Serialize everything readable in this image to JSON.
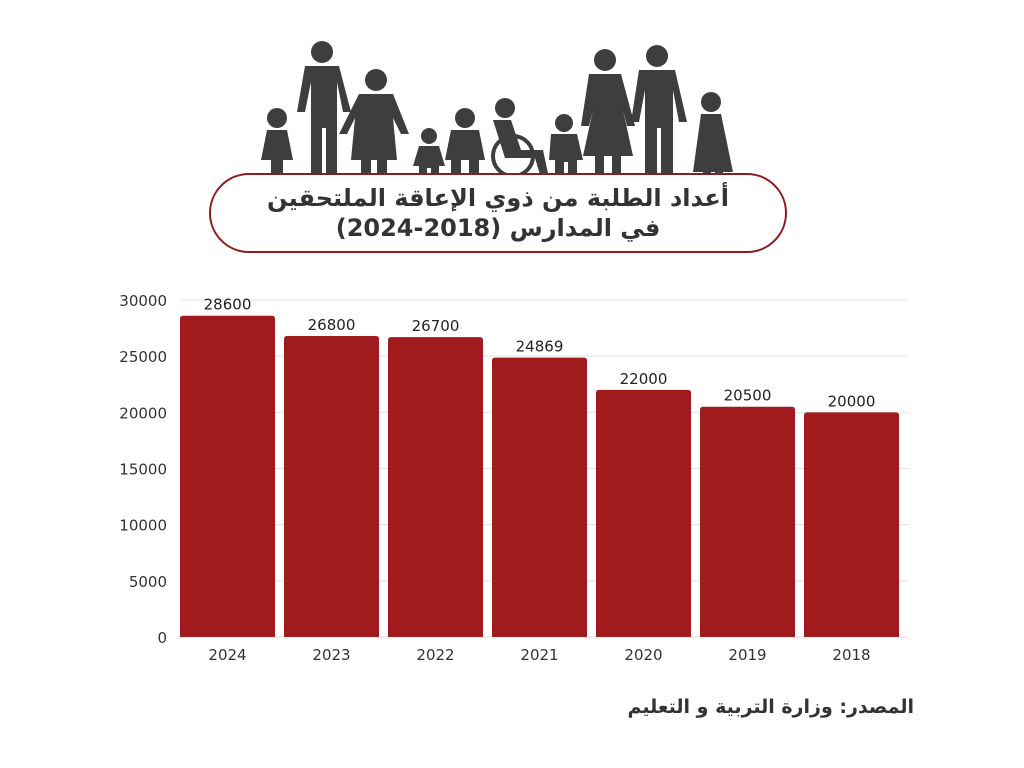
{
  "header": {
    "title_line1": "أعداد الطلبة من ذوي الإعاقة الملتحقين",
    "title_line2": "في المدارس (2018-2024)"
  },
  "footer": {
    "source": "المصدر: وزارة التربية و التعليم"
  },
  "colors": {
    "bar": "#a01b1e",
    "border": "#8e1b1f",
    "silhouette": "#3e3e3e",
    "grid": "#e3e3e3",
    "text": "#333333"
  },
  "chart_data": {
    "type": "bar",
    "categories": [
      "2024",
      "2023",
      "2022",
      "2021",
      "2020",
      "2019",
      "2018"
    ],
    "values": [
      28600,
      26800,
      26700,
      24869,
      22000,
      20500,
      20000
    ],
    "yticks": [
      0,
      5000,
      10000,
      15000,
      20000,
      25000,
      30000
    ],
    "ylim": [
      0,
      30000
    ],
    "title": "أعداد الطلبة من ذوي الإعاقة الملتحقين في المدارس (2018-2024)",
    "xlabel": "",
    "ylabel": "",
    "grid": true,
    "data_labels": true
  }
}
